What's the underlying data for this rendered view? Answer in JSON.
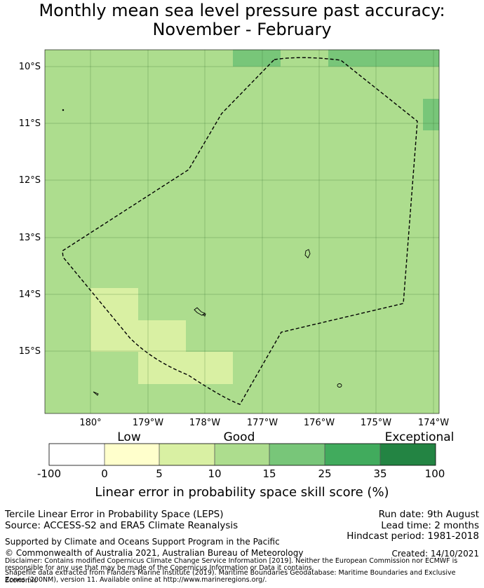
{
  "title": {
    "line1": "Monthly mean sea level pressure past accuracy:",
    "line2": "November - February"
  },
  "map": {
    "lat_labels": [
      "10°S",
      "11°S",
      "12°S",
      "13°S",
      "14°S",
      "15°S"
    ],
    "lon_labels": [
      "180°",
      "179°W",
      "178°W",
      "177°W",
      "176°W",
      "175°W",
      "174°W"
    ],
    "colors": {
      "good_10_15": "#addd8e",
      "good_15_25": "#78c679",
      "good_5_10": "#d9f0a3",
      "boundary": "#000000"
    }
  },
  "colorbar": {
    "categories": [
      "Low",
      "Good",
      "Exceptional"
    ],
    "ticks": [
      "-100",
      "0",
      "5",
      "10",
      "15",
      "25",
      "35",
      "100"
    ],
    "colors": [
      "#ffffff",
      "#ffffcc",
      "#d9f0a3",
      "#addd8e",
      "#78c679",
      "#41ab5d",
      "#238443"
    ],
    "label": "Linear error in probability space skill score (%)"
  },
  "info": {
    "method": "Tercile Linear Error in Probability Space (LEPS)",
    "source": "Source: ACCESS-S2 and ERA5 Climate Reanalysis",
    "run_date": "Run date: 9th August",
    "lead_time": "Lead time: 2 months",
    "hindcast": "Hindcast period: 1981-2018",
    "supported": "Supported by Climate and Oceans Support Program in the Pacific",
    "copyright": "© Commonwealth of Australia 2021, Australian Bureau of Meteorology",
    "created": "Created: 14/10/2021",
    "disclaimer1": "Disclaimer: Contains modified Copernicus Climate Change Service Information [2019]. Neither the European Commission nor ECMWF is",
    "disclaimer2": "responsible for any use that may be made of the Copernicus Information or Data it contains.",
    "shapefile1": "Shapefile data extracted from Flanders Marine Institute (2019). Maritime Boundaries Geodatabase: Maritime Boundaries and Exclusive Economic",
    "shapefile2": "Zones (200NM), version 11. Available online at http://www.marineregions.org/."
  }
}
